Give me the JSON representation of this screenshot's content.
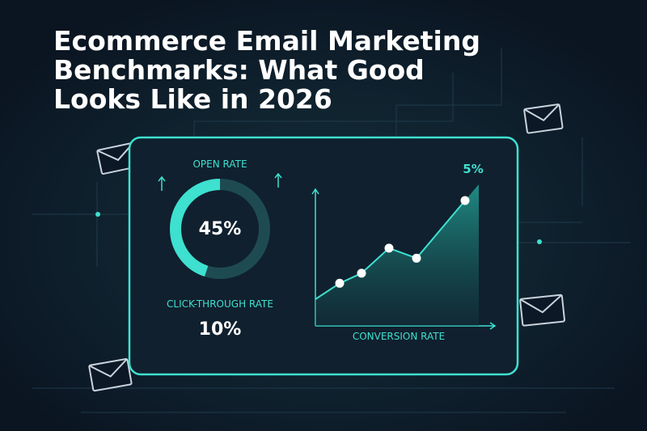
{
  "title_lines": [
    "Ecommerce Email Marketing",
    "Benchmarks: What Good",
    "Looks Like in 2026"
  ],
  "open_rate": {
    "label": "OPEN RATE",
    "value": 45,
    "value_label": "45%"
  },
  "click_through_rate": {
    "label": "CLICK-THROUGH RATE",
    "value": 10,
    "value_label": "10%"
  },
  "conversion_rate": {
    "label": "CONVERSION RATE",
    "values": [
      1.7,
      2.1,
      3.1,
      2.7,
      5
    ],
    "value_labels": [
      null,
      null,
      null,
      null,
      "5%"
    ]
  }
}
